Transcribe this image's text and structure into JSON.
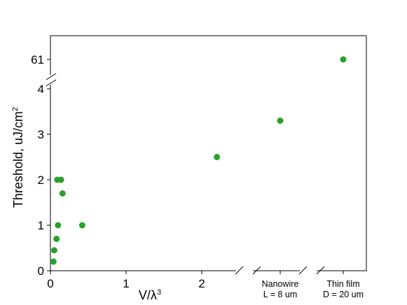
{
  "chart_data": {
    "type": "scatter",
    "title": "",
    "xlabel_base": "V/λ",
    "xlabel_sup": "3",
    "ylabel_base": "Threshold, uJ/cm",
    "ylabel_sup": "2",
    "xlim": [
      0,
      2.45
    ],
    "ylim": [
      0,
      4
    ],
    "x_ticks": [
      "0",
      "1",
      "2"
    ],
    "y_ticks": [
      "0",
      "1",
      "2",
      "3",
      "4"
    ],
    "upper_y_tick": "61",
    "grid": false,
    "legend": "none",
    "point_color": "#2ca02c",
    "points": [
      {
        "x": 0.04,
        "y": 0.2
      },
      {
        "x": 0.05,
        "y": 0.45
      },
      {
        "x": 0.08,
        "y": 0.7
      },
      {
        "x": 0.1,
        "y": 1.0
      },
      {
        "x": 0.09,
        "y": 2.0
      },
      {
        "x": 0.14,
        "y": 2.0
      },
      {
        "x": 0.16,
        "y": 1.7
      },
      {
        "x": 0.42,
        "y": 1.0
      },
      {
        "x": 2.2,
        "y": 2.5
      }
    ],
    "categories": [
      {
        "line1": "Nanowire",
        "line2": "L = 8 um",
        "y": 3.3
      },
      {
        "line1": "Thin film",
        "line2": "D = 20 um",
        "y": 61
      }
    ]
  }
}
